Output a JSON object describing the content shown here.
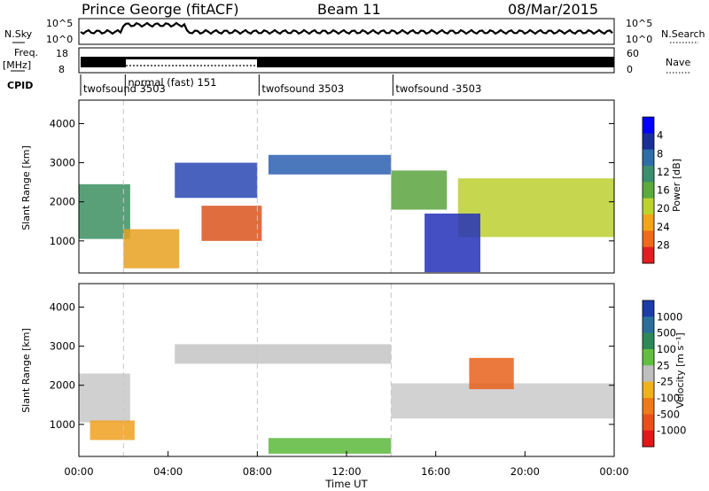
{
  "header": {
    "station": "Prince George (fitACF)",
    "beam": "Beam 11",
    "date": "08/Mar/2015"
  },
  "noise_panel": {
    "left_label": "N.Sky",
    "right_label": "N.Search",
    "ticks": [
      "10^5",
      "10^0"
    ],
    "right_ticks": [
      "10^5",
      "10^0"
    ]
  },
  "freq_panel": {
    "left_label_line1": "Freq.",
    "left_label_line2": "[MHz]",
    "left_ticks": [
      "18",
      "8"
    ],
    "right_label": "Nave",
    "right_ticks": [
      "60",
      "0"
    ]
  },
  "cpid": {
    "label": "CPID",
    "segments": [
      {
        "text": "twofsound 3503",
        "start_hour": 0.0
      },
      {
        "text": "normal (fast) 151",
        "start_hour": 2.0
      },
      {
        "text": "twofsound 3503",
        "start_hour": 8.0
      },
      {
        "text": "twofsound -3503",
        "start_hour": 14.0
      }
    ]
  },
  "chart_data": [
    {
      "type": "heatmap",
      "panel": "power",
      "ylabel": "Slant Range [km]",
      "yticks": [
        "1000",
        "2000",
        "3000",
        "4000"
      ],
      "ylim": [
        180,
        4600
      ],
      "xlim": [
        0,
        24
      ],
      "colorbar_label": "Power [dB]",
      "colorbar_ticks": [
        "4",
        "8",
        "12",
        "16",
        "20",
        "24",
        "28"
      ],
      "colormap": [
        "#0000ff",
        "#1a2e9a",
        "#2c6ea8",
        "#3a8f6e",
        "#5aab3c",
        "#bcd22f",
        "#f4a31c",
        "#f06a1a",
        "#e02020"
      ],
      "bands": [
        {
          "t0": 0.0,
          "t1": 2.3,
          "r0": 1050,
          "r1": 2450,
          "color": "#3c8f62"
        },
        {
          "t0": 2.0,
          "t1": 4.5,
          "r0": 300,
          "r1": 1300,
          "color": "#e8a01e"
        },
        {
          "t0": 5.5,
          "t1": 8.2,
          "r0": 1000,
          "r1": 1900,
          "color": "#d9531b"
        },
        {
          "t0": 4.3,
          "t1": 8.0,
          "r0": 2100,
          "r1": 3000,
          "color": "#2846b2"
        },
        {
          "t0": 8.5,
          "t1": 14.0,
          "r0": 2700,
          "r1": 3200,
          "color": "#2c5fb0"
        },
        {
          "t0": 14.0,
          "t1": 16.5,
          "r0": 1800,
          "r1": 2800,
          "color": "#5aa33d"
        },
        {
          "t0": 17.0,
          "t1": 24.0,
          "r0": 1100,
          "r1": 2600,
          "color": "#bccf2f"
        },
        {
          "t0": 15.5,
          "t1": 18.0,
          "r0": 200,
          "r1": 1700,
          "color": "#2330b8"
        }
      ]
    },
    {
      "type": "heatmap",
      "panel": "velocity",
      "ylabel": "Slant Range [km]",
      "yticks": [
        "1000",
        "2000",
        "3000",
        "4000"
      ],
      "ylim": [
        180,
        4600
      ],
      "xlim": [
        0,
        24
      ],
      "xticks": [
        "00:00",
        "04:00",
        "08:00",
        "12:00",
        "16:00",
        "20:00",
        "00:00"
      ],
      "xlabel": "Time UT",
      "colorbar_label": "Velocity [m s⁻¹]",
      "colorbar_ticks": [
        "1000",
        "500",
        "100",
        "25",
        "-25",
        "-100",
        "-500",
        "-1000"
      ],
      "colormap": [
        "#1c3caa",
        "#2a6f9c",
        "#2c8a5a",
        "#62c040",
        "#bfbfbf",
        "#f0b020",
        "#f07a18",
        "#e8501a",
        "#e01818"
      ],
      "bands": [
        {
          "t0": 0.0,
          "t1": 2.3,
          "r0": 1050,
          "r1": 2300,
          "color": "#c8c8c8"
        },
        {
          "t0": 0.5,
          "t1": 2.5,
          "r0": 600,
          "r1": 1100,
          "color": "#f0a020"
        },
        {
          "t0": 4.3,
          "t1": 14.0,
          "r0": 2550,
          "r1": 3050,
          "color": "#c4c4c4"
        },
        {
          "t0": 14.0,
          "t1": 24.0,
          "r0": 1150,
          "r1": 2050,
          "color": "#cacaca"
        },
        {
          "t0": 17.5,
          "t1": 19.5,
          "r0": 1900,
          "r1": 2700,
          "color": "#e8601a"
        },
        {
          "t0": 8.5,
          "t1": 14.0,
          "r0": 250,
          "r1": 650,
          "color": "#5ab83c"
        }
      ]
    }
  ]
}
